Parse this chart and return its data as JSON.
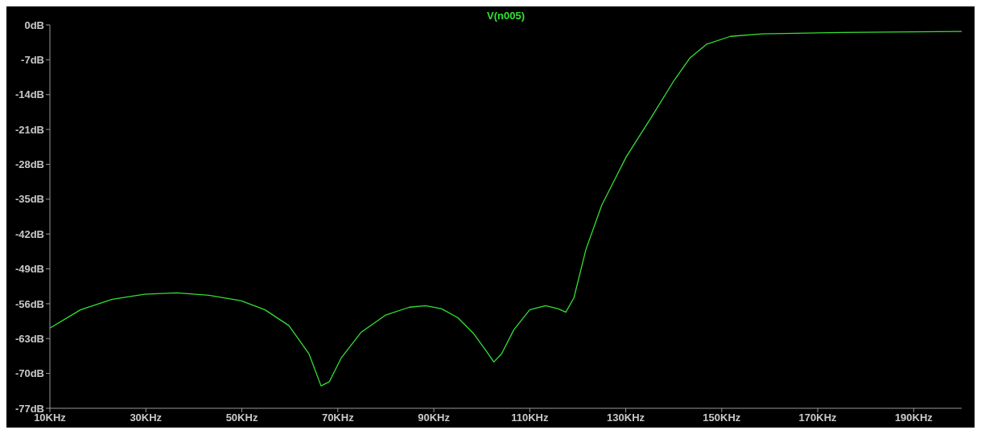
{
  "chart_data": {
    "type": "line",
    "x": [
      10,
      16.4,
      23,
      29.7,
      36.4,
      43.1,
      49.8,
      54.8,
      59.8,
      64,
      66.5,
      68.2,
      70.7,
      74.9,
      79.9,
      84.9,
      88.3,
      91.6,
      95,
      98.3,
      100.8,
      102.5,
      104.1,
      106.7,
      110,
      113.3,
      115.9,
      117.5,
      119.2,
      121.7,
      125,
      130.1,
      135.1,
      140.1,
      143.4,
      146.8,
      151.8,
      158.5,
      175.2,
      200
    ],
    "series": [
      {
        "name": "V(n005)",
        "color": "#33e033",
        "values": [
          -60.9,
          -57.2,
          -55.1,
          -54.1,
          -53.8,
          -54.3,
          -55.4,
          -57.2,
          -60.4,
          -66.1,
          -72.5,
          -71.7,
          -66.9,
          -61.7,
          -58.3,
          -56.7,
          -56.4,
          -57.0,
          -58.8,
          -62,
          -65.3,
          -67.7,
          -66.1,
          -61.2,
          -57.2,
          -56.4,
          -57,
          -57.7,
          -54.8,
          -45.1,
          -36.2,
          -26.5,
          -18.9,
          -11.1,
          -6.6,
          -3.9,
          -2.3,
          -1.8,
          -1.5,
          -1.3
        ]
      }
    ],
    "xlim": [
      10,
      200
    ],
    "xticks": [
      {
        "value": 10,
        "label": "10KHz"
      },
      {
        "value": 30,
        "label": "30KHz"
      },
      {
        "value": 50,
        "label": "50KHz"
      },
      {
        "value": 70,
        "label": "70KHz"
      },
      {
        "value": 90,
        "label": "90KHz"
      },
      {
        "value": 110,
        "label": "110KHz"
      },
      {
        "value": 130,
        "label": "130KHz"
      },
      {
        "value": 150,
        "label": "150KHz"
      },
      {
        "value": 170,
        "label": "170KHz"
      },
      {
        "value": 190,
        "label": "190KHz"
      }
    ],
    "ylim": [
      -77,
      0
    ],
    "yticks": [
      {
        "value": 0,
        "label": "0dB"
      },
      {
        "value": -7,
        "label": "-7dB"
      },
      {
        "value": -14,
        "label": "-14dB"
      },
      {
        "value": -21,
        "label": "-21dB"
      },
      {
        "value": -28,
        "label": "-28dB"
      },
      {
        "value": -35,
        "label": "-35dB"
      },
      {
        "value": -42,
        "label": "-42dB"
      },
      {
        "value": -49,
        "label": "-49dB"
      },
      {
        "value": -56,
        "label": "-56dB"
      },
      {
        "value": -63,
        "label": "-63dB"
      },
      {
        "value": -70,
        "label": "-70dB"
      },
      {
        "value": -77,
        "label": "-77dB"
      }
    ],
    "legend": "top"
  }
}
